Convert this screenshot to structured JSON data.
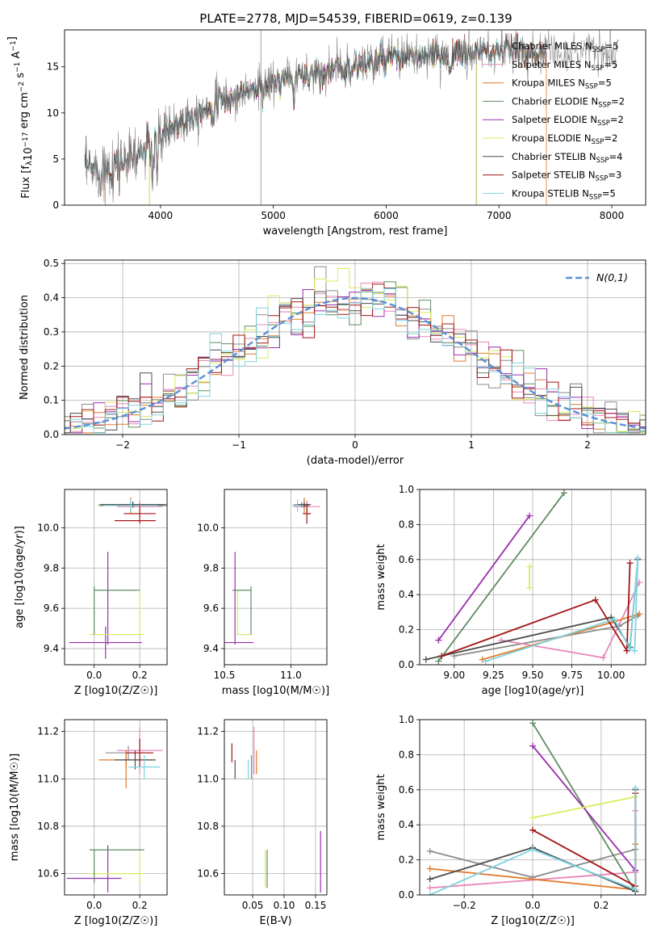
{
  "title": "PLATE=2778, MJD=54539, FIBERID=0619, z=0.139",
  "colors": {
    "Chabrier MILES": "#8c8c8c",
    "Salpeter MILES": "#e887b8",
    "Kroupa MILES": "#e07b2e",
    "Chabrier ELODIE": "#5e8c63",
    "Salpeter ELODIE": "#9a2fae",
    "Kroupa ELODIE": "#d9ec5e",
    "Chabrier STELIB": "#4d4d4d",
    "Salpeter STELIB": "#a31515",
    "Kroupa STELIB": "#7fd3e0",
    "gauss": "#5b8fd6"
  },
  "chart_data": [
    {
      "id": "spectrum",
      "type": "line",
      "xlabel": "wavelength [Angstrom, rest frame]",
      "ylabel": "Flux [f_λ10^-17 erg cm^-2 s^-1 A^-1]",
      "xlim": [
        3150,
        8300
      ],
      "ylim": [
        0,
        19
      ],
      "xticks": [
        4000,
        5000,
        6000,
        7000,
        8000
      ],
      "yticks": [
        0,
        5,
        10,
        15
      ],
      "grid": false,
      "legend_position": "right",
      "legend": [
        {
          "name": "Chabrier MILES",
          "nssp": "5"
        },
        {
          "name": "Salpeter MILES",
          "nssp": "5"
        },
        {
          "name": "Kroupa MILES",
          "nssp": "5"
        },
        {
          "name": "Chabrier ELODIE",
          "nssp": "2"
        },
        {
          "name": "Salpeter ELODIE",
          "nssp": "2"
        },
        {
          "name": "Kroupa ELODIE",
          "nssp": "2"
        },
        {
          "name": "Chabrier STELIB",
          "nssp": "4"
        },
        {
          "name": "Salpeter STELIB",
          "nssp": "3"
        },
        {
          "name": "Kroupa STELIB",
          "nssp": "5"
        }
      ],
      "continuum": {
        "x": [
          3330,
          3500,
          3700,
          3900,
          4100,
          4300,
          4500,
          4800,
          5000,
          5300,
          5600,
          5900,
          6200,
          6500,
          6800,
          7100,
          7400,
          7700,
          8050
        ],
        "y": [
          3.8,
          4.0,
          4.8,
          6.2,
          8.5,
          10.0,
          11.0,
          12.5,
          13.2,
          14.2,
          14.8,
          15.6,
          16.0,
          16.2,
          16.5,
          16.8,
          16.5,
          16.8,
          16.8
        ]
      }
    },
    {
      "id": "residuals",
      "type": "histogram",
      "xlabel": "(data-model)/error",
      "ylabel": "Normed distribution",
      "xlim": [
        -2.5,
        2.5
      ],
      "ylim": [
        0,
        0.51
      ],
      "xticks": [
        -2,
        -1,
        0,
        1,
        2
      ],
      "yticks": [
        0.0,
        0.1,
        0.2,
        0.3,
        0.4,
        0.5
      ],
      "grid": true,
      "legend_position": "top-right",
      "gauss_label": "N(0,1)",
      "bin_width": 0.1
    },
    {
      "id": "z-vs-age",
      "type": "errorbar",
      "xlabel": "Z [log10(Z/Z☉)]",
      "ylabel": "age [log10(age/yr)]",
      "xlim": [
        -0.13,
        0.32
      ],
      "ylim": [
        9.32,
        10.19
      ],
      "xticks": [
        0.0,
        0.2
      ],
      "yticks": [
        9.4,
        9.6,
        9.8,
        10.0
      ],
      "grid": true,
      "points": [
        {
          "model": "Chabrier MILES",
          "x": 0.17,
          "xe": 0.15,
          "y": 10.115,
          "ye": 0.012
        },
        {
          "model": "Salpeter MILES",
          "x": 0.2,
          "xe": 0.1,
          "y": 10.105,
          "ye": 0.03
        },
        {
          "model": "Kroupa MILES",
          "x": 0.16,
          "xe": 0.13,
          "y": 10.11,
          "ye": 0.04
        },
        {
          "model": "Chabrier ELODIE",
          "x": 0.17,
          "xe": 0.15,
          "y": 10.11,
          "ye": 0.01
        },
        {
          "model": "Salpeter ELODIE",
          "x": 0.05,
          "xe": 0.16,
          "y": 9.43,
          "ye": 0.08
        },
        {
          "model": "Salpeter ELODIE",
          "x": 0.06,
          "xe": 0.0,
          "y": 9.65,
          "ye": 0.23
        },
        {
          "model": "Kroupa ELODIE",
          "x": 0.2,
          "xe": 0.0,
          "y": 9.58,
          "ye": 0.11
        },
        {
          "model": "Kroupa ELODIE",
          "x": 0.1,
          "xe": 0.12,
          "y": 9.47,
          "ye": 0.0
        },
        {
          "model": "Chabrier ELODIE",
          "x": 0.1,
          "xe": 0.1,
          "y": 9.69,
          "ye": 0.0
        },
        {
          "model": "Chabrier ELODIE",
          "x": 0.0,
          "xe": 0.0,
          "y": 9.59,
          "ye": 0.12
        },
        {
          "model": "Chabrier STELIB",
          "x": 0.17,
          "xe": 0.14,
          "y": 10.115,
          "ye": 0.015
        },
        {
          "model": "Salpeter STELIB",
          "x": 0.2,
          "xe": 0.07,
          "y": 10.07,
          "ye": 0.05
        },
        {
          "model": "Salpeter STELIB",
          "x": 0.18,
          "xe": 0.09,
          "y": 10.035,
          "ye": 0.0
        },
        {
          "model": "Kroupa STELIB",
          "x": 0.16,
          "xe": 0.12,
          "y": 10.11,
          "ye": 0.03
        }
      ]
    },
    {
      "id": "mass-vs-age",
      "type": "errorbar",
      "xlabel": "mass [log10(M/M☉)]",
      "ylabel": "",
      "xlim": [
        10.5,
        11.27
      ],
      "ylim": [
        9.32,
        10.19
      ],
      "xticks": [
        10.5,
        11.0
      ],
      "yticks": [
        9.4,
        9.6,
        9.8,
        10.0
      ],
      "grid": true,
      "points": [
        {
          "model": "Chabrier MILES",
          "x": 11.08,
          "xe": 0.06,
          "y": 10.115,
          "ye": 0.012
        },
        {
          "model": "Salpeter MILES",
          "x": 11.12,
          "xe": 0.1,
          "y": 10.105,
          "ye": 0.03
        },
        {
          "model": "Kroupa MILES",
          "x": 11.1,
          "xe": 0.04,
          "y": 10.11,
          "ye": 0.04
        },
        {
          "model": "Chabrier ELODIE",
          "x": 11.08,
          "xe": 0.05,
          "y": 10.11,
          "ye": 0.01
        },
        {
          "model": "Salpeter ELODIE",
          "x": 10.58,
          "xe": 0.14,
          "y": 9.43,
          "ye": 0.0
        },
        {
          "model": "Salpeter ELODIE",
          "x": 10.58,
          "xe": 0.0,
          "y": 9.65,
          "ye": 0.23
        },
        {
          "model": "Kroupa ELODIE",
          "x": 10.6,
          "xe": 0.0,
          "y": 9.58,
          "ye": 0.11
        },
        {
          "model": "Kroupa ELODIE",
          "x": 10.65,
          "xe": 0.06,
          "y": 9.47,
          "ye": 0.0
        },
        {
          "model": "Chabrier ELODIE",
          "x": 10.63,
          "xe": 0.07,
          "y": 9.69,
          "ye": 0.0
        },
        {
          "model": "Chabrier ELODIE",
          "x": 10.7,
          "xe": 0.0,
          "y": 9.59,
          "ye": 0.12
        },
        {
          "model": "Chabrier STELIB",
          "x": 11.1,
          "xe": 0.05,
          "y": 10.115,
          "ye": 0.015
        },
        {
          "model": "Salpeter STELIB",
          "x": 11.12,
          "xe": 0.03,
          "y": 10.07,
          "ye": 0.05
        },
        {
          "model": "Kroupa STELIB",
          "x": 11.05,
          "xe": 0.04,
          "y": 10.11,
          "ye": 0.03
        }
      ]
    },
    {
      "id": "age-vs-weight",
      "type": "line",
      "xlabel": "age [log10(age/yr)]",
      "ylabel": "mass weight",
      "xlim": [
        8.78,
        10.22
      ],
      "ylim": [
        0,
        1.0
      ],
      "xticks": [
        9.0,
        9.25,
        9.5,
        9.75,
        10.0
      ],
      "yticks": [
        0.0,
        0.2,
        0.4,
        0.6,
        0.8,
        1.0
      ],
      "grid": true,
      "series": [
        {
          "model": "Chabrier MILES",
          "x": [
            9.0,
            10.05,
            10.17
          ],
          "y": [
            0.05,
            0.22,
            0.28
          ]
        },
        {
          "model": "Salpeter MILES",
          "x": [
            9.3,
            9.95,
            10.18
          ],
          "y": [
            0.14,
            0.04,
            0.47
          ]
        },
        {
          "model": "Kroupa MILES",
          "x": [
            9.18,
            10.0,
            10.18
          ],
          "y": [
            0.03,
            0.24,
            0.29
          ]
        },
        {
          "model": "Chabrier ELODIE",
          "x": [
            8.9,
            9.7
          ],
          "y": [
            0.02,
            0.98
          ]
        },
        {
          "model": "Salpeter ELODIE",
          "x": [
            8.9,
            9.48
          ],
          "y": [
            0.14,
            0.85
          ]
        },
        {
          "model": "Kroupa ELODIE",
          "x": [
            9.48,
            9.48
          ],
          "y": [
            0.44,
            0.56
          ]
        },
        {
          "model": "Chabrier STELIB",
          "x": [
            8.82,
            10.0,
            10.12,
            10.17
          ],
          "y": [
            0.03,
            0.27,
            0.1,
            0.6
          ]
        },
        {
          "model": "Salpeter STELIB",
          "x": [
            8.92,
            9.9,
            10.1,
            10.12
          ],
          "y": [
            0.05,
            0.37,
            0.08,
            0.58
          ]
        },
        {
          "model": "Kroupa STELIB",
          "x": [
            9.2,
            10.02,
            10.12,
            10.17,
            10.15
          ],
          "y": [
            0.02,
            0.26,
            0.09,
            0.61,
            0.08
          ]
        }
      ]
    },
    {
      "id": "z-vs-mass",
      "type": "errorbar",
      "xlabel": "Z [log10(Z/Z☉)]",
      "ylabel": "mass [log10(M/M☉)]",
      "xlim": [
        -0.13,
        0.32
      ],
      "ylim": [
        10.51,
        11.25
      ],
      "xticks": [
        0.0,
        0.2
      ],
      "yticks": [
        10.6,
        10.8,
        11.0,
        11.2
      ],
      "grid": true,
      "points": [
        {
          "model": "Chabrier MILES",
          "x": 0.15,
          "xe": 0.1,
          "y": 11.11,
          "ye": 0.03
        },
        {
          "model": "Salpeter MILES",
          "x": 0.2,
          "xe": 0.1,
          "y": 11.12,
          "ye": 0.1
        },
        {
          "model": "Kroupa MILES",
          "x": 0.14,
          "xe": 0.12,
          "y": 11.08,
          "ye": 0.04
        },
        {
          "model": "Kroupa MILES",
          "x": 0.14,
          "xe": 0.0,
          "y": 11.04,
          "ye": 0.08
        },
        {
          "model": "Salpeter ELODIE",
          "x": 0.06,
          "xe": 0.0,
          "y": 10.62,
          "ye": 0.1
        },
        {
          "model": "Salpeter ELODIE",
          "x": 0.0,
          "xe": 0.12,
          "y": 10.58,
          "ye": 0.0
        },
        {
          "model": "Kroupa ELODIE",
          "x": 0.2,
          "xe": 0.0,
          "y": 10.63,
          "ye": 0.07
        },
        {
          "model": "Kroupa ELODIE",
          "x": 0.1,
          "xe": 0.12,
          "y": 10.6,
          "ye": 0.0
        },
        {
          "model": "Chabrier ELODIE",
          "x": 0.1,
          "xe": 0.12,
          "y": 10.7,
          "ye": 0.0
        },
        {
          "model": "Chabrier ELODIE",
          "x": 0.0,
          "xe": 0.0,
          "y": 10.63,
          "ye": 0.07
        },
        {
          "model": "Chabrier STELIB",
          "x": 0.18,
          "xe": 0.09,
          "y": 11.08,
          "ye": 0.04
        },
        {
          "model": "Salpeter STELIB",
          "x": 0.2,
          "xe": 0.06,
          "y": 11.11,
          "ye": 0.06
        },
        {
          "model": "Kroupa STELIB",
          "x": 0.22,
          "xe": 0.07,
          "y": 11.05,
          "ye": 0.05
        }
      ]
    },
    {
      "id": "ebv-vs-mass",
      "type": "errorbar",
      "xlabel": "E(B-V)",
      "ylabel": "",
      "xlim": [
        0.005,
        0.168
      ],
      "ylim": [
        10.51,
        11.25
      ],
      "xticks": [
        0.05,
        0.1,
        0.15
      ],
      "yticks": [
        10.6,
        10.8,
        11.0,
        11.2
      ],
      "grid": true,
      "points": [
        {
          "model": "Salpeter STELIB",
          "x": 0.017,
          "xe": 0.0,
          "y": 11.11,
          "ye": 0.04
        },
        {
          "model": "Chabrier STELIB",
          "x": 0.022,
          "xe": 0.0,
          "y": 11.04,
          "ye": 0.04
        },
        {
          "model": "Kroupa STELIB",
          "x": 0.043,
          "xe": 0.0,
          "y": 11.04,
          "ye": 0.04
        },
        {
          "model": "Chabrier MILES",
          "x": 0.048,
          "xe": 0.0,
          "y": 11.05,
          "ye": 0.05
        },
        {
          "model": "Salpeter MILES",
          "x": 0.052,
          "xe": 0.0,
          "y": 11.12,
          "ye": 0.1
        },
        {
          "model": "Kroupa MILES",
          "x": 0.056,
          "xe": 0.0,
          "y": 11.07,
          "ye": 0.05
        },
        {
          "model": "Kroupa ELODIE",
          "x": 0.07,
          "xe": 0.0,
          "y": 10.62,
          "ye": 0.08
        },
        {
          "model": "Chabrier ELODIE",
          "x": 0.073,
          "xe": 0.0,
          "y": 10.62,
          "ye": 0.08
        },
        {
          "model": "Salpeter ELODIE",
          "x": 0.158,
          "xe": 0.0,
          "y": 10.65,
          "ye": 0.13
        }
      ]
    },
    {
      "id": "z-vs-weight",
      "type": "line",
      "xlabel": "Z [log10(Z/Z☉)]",
      "ylabel": "mass weight",
      "xlim": [
        -0.33,
        0.33
      ],
      "ylim": [
        0,
        1.0
      ],
      "xticks": [
        -0.2,
        0.0,
        0.2
      ],
      "yticks": [
        0.0,
        0.2,
        0.4,
        0.6,
        0.8,
        1.0
      ],
      "grid": true,
      "series": [
        {
          "model": "Chabrier MILES",
          "x": [
            -0.3,
            0.0,
            0.3
          ],
          "y": [
            0.25,
            0.1,
            0.26
          ]
        },
        {
          "model": "Salpeter MILES",
          "x": [
            -0.3,
            0.3,
            0.3
          ],
          "y": [
            0.04,
            0.13,
            0.48
          ]
        },
        {
          "model": "Kroupa MILES",
          "x": [
            -0.3,
            0.3,
            0.3
          ],
          "y": [
            0.15,
            0.03,
            0.29
          ]
        },
        {
          "model": "Chabrier ELODIE",
          "x": [
            0.0,
            0.3
          ],
          "y": [
            0.98,
            0.02
          ]
        },
        {
          "model": "Salpeter ELODIE",
          "x": [
            0.0,
            0.3
          ],
          "y": [
            0.85,
            0.14
          ]
        },
        {
          "model": "Kroupa ELODIE",
          "x": [
            0.0,
            0.3
          ],
          "y": [
            0.44,
            0.56
          ]
        },
        {
          "model": "Chabrier STELIB",
          "x": [
            -0.3,
            0.0,
            0.3,
            0.3
          ],
          "y": [
            0.09,
            0.27,
            0.02,
            0.6
          ]
        },
        {
          "model": "Salpeter STELIB",
          "x": [
            0.0,
            0.3,
            0.3
          ],
          "y": [
            0.37,
            0.05,
            0.58
          ]
        },
        {
          "model": "Kroupa STELIB",
          "x": [
            -0.3,
            0.0,
            0.3,
            0.3
          ],
          "y": [
            0.0,
            0.26,
            0.03,
            0.61
          ]
        }
      ]
    }
  ]
}
